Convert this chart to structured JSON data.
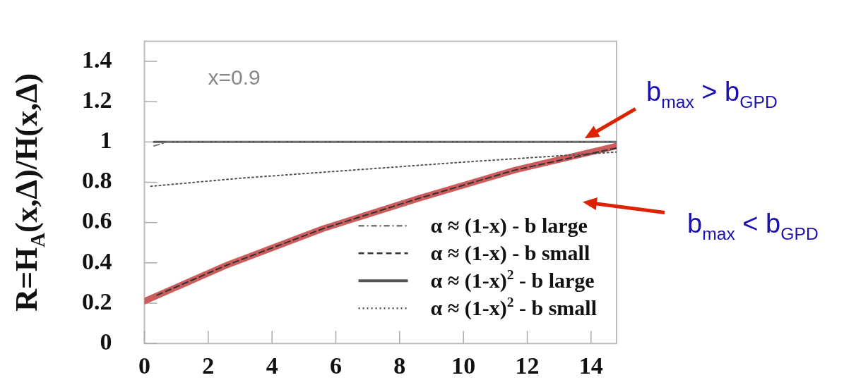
{
  "chart_data": {
    "type": "line",
    "ylabel": "R=H$_{A}$(x,Δ)/H(x,Δ)",
    "xlim": [
      0,
      14.8
    ],
    "xticks": [
      0,
      2,
      4,
      6,
      8,
      10,
      12,
      14
    ],
    "ylim": [
      0,
      1.5
    ],
    "yticks": [
      0,
      0.2,
      0.4,
      0.6,
      0.8,
      1,
      1.2,
      1.4
    ],
    "grid": false,
    "legend": "bottom right",
    "marker": "none",
    "series": [
      {
        "name": "α ≈ (1-x) - b large",
        "color": "#777777",
        "line_style": "dashdot",
        "x": [
          0.3,
          0.7,
          1.2,
          14.8
        ],
        "values": [
          0.98,
          1.0,
          1.0,
          1.0
        ]
      },
      {
        "name": "α ≈ (1-x) - b small",
        "color": "#333333",
        "line_style": "dashed",
        "x": [
          0.4,
          2.6,
          5.6,
          8.6,
          11.6,
          14.8
        ],
        "values": [
          0.24,
          0.39,
          0.57,
          0.72,
          0.86,
          0.97
        ]
      },
      {
        "name": "α ≈ (1-x)$^{2}$ - b large",
        "color": "#555555",
        "line_style": "solid",
        "x": [
          0.3,
          14.8
        ],
        "values": [
          1.0,
          1.0
        ]
      },
      {
        "name": "α ≈ (1-x)$^{2}$ - b small",
        "color": "#555555",
        "line_style": "dotted",
        "x": [
          0.2,
          3,
          6.5,
          10,
          14.8
        ],
        "values": [
          0.78,
          0.82,
          0.86,
          0.9,
          0.95
        ]
      },
      {
        "color": "#cd5c5c",
        "line_style": "solid",
        "x": [
          0,
          2.6,
          5.6,
          8.6,
          11.6,
          14.8
        ],
        "values": [
          0.21,
          0.39,
          0.57,
          0.72,
          0.86,
          0.98
        ]
      }
    ],
    "annotations": [
      "x=0.9",
      {
        "text": "b$_{max}$ > b$_{GPD}$",
        "x": 13.8,
        "y": 1
      },
      "b$_{max}$ < b$_{GPD}$"
    ]
  }
}
